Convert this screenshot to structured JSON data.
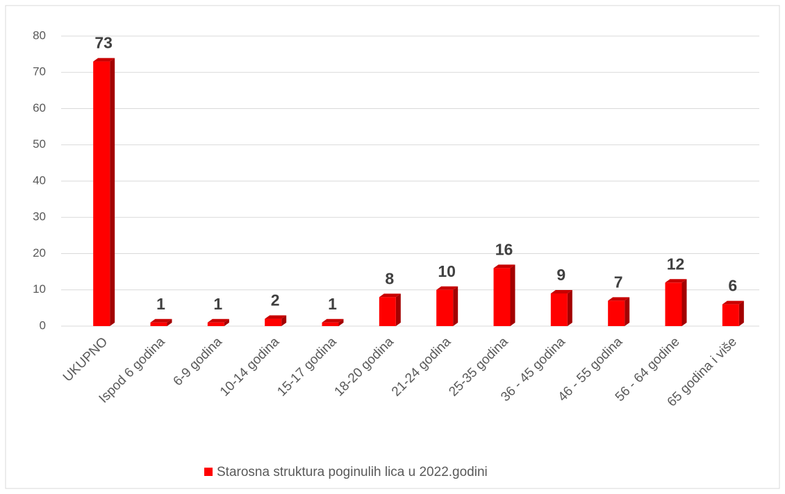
{
  "chart_data": {
    "type": "bar",
    "categories": [
      "UKUPNO",
      "Ispod 6 godina",
      "6-9 godina",
      "10-14 godina",
      "15-17 godina",
      "18-20 godina",
      "21-24 godina",
      "25-35 godina",
      "36 - 45 godina",
      "46 - 55 godina",
      "56 - 64 godine",
      "65 godina i više"
    ],
    "series": [
      {
        "name": "Starosna struktura poginulih lica u 2022.godini",
        "color": "#ff0000",
        "values": [
          73,
          1,
          1,
          2,
          1,
          8,
          10,
          16,
          9,
          7,
          12,
          6
        ]
      }
    ],
    "ylim": [
      0,
      80
    ],
    "yticks": [
      0,
      10,
      20,
      30,
      40,
      50,
      60,
      70,
      80
    ],
    "grid": true,
    "legend": "bottom"
  }
}
